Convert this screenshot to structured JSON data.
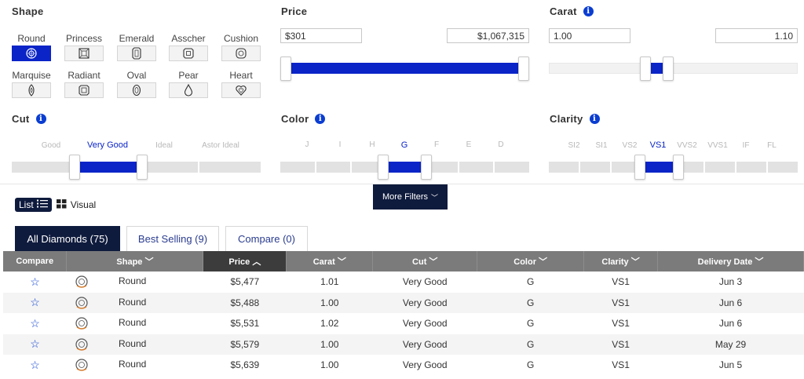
{
  "shape": {
    "title": "Shape",
    "items": [
      {
        "label": "Round",
        "icon": "round-shape-icon",
        "active": true
      },
      {
        "label": "Princess",
        "icon": "princess-shape-icon",
        "active": false
      },
      {
        "label": "Emerald",
        "icon": "emerald-shape-icon",
        "active": false
      },
      {
        "label": "Asscher",
        "icon": "asscher-shape-icon",
        "active": false
      },
      {
        "label": "Cushion",
        "icon": "cushion-shape-icon",
        "active": false
      },
      {
        "label": "Marquise",
        "icon": "marquise-shape-icon",
        "active": false
      },
      {
        "label": "Radiant",
        "icon": "radiant-shape-icon",
        "active": false
      },
      {
        "label": "Oval",
        "icon": "oval-shape-icon",
        "active": false
      },
      {
        "label": "Pear",
        "icon": "pear-shape-icon",
        "active": false
      },
      {
        "label": "Heart",
        "icon": "heart-shape-icon",
        "active": false
      }
    ]
  },
  "price": {
    "title": "Price",
    "min_value": "$301",
    "max_value": "$1,067,315"
  },
  "carat": {
    "title": "Carat",
    "min_value": "1.00",
    "max_value": "1.10"
  },
  "cut": {
    "title": "Cut",
    "grades": [
      "Good",
      "Very Good",
      "Ideal",
      "Astor Ideal"
    ],
    "selected": "Very Good"
  },
  "color": {
    "title": "Color",
    "grades": [
      "J",
      "I",
      "H",
      "G",
      "F",
      "E",
      "D"
    ],
    "selected": "G"
  },
  "clarity": {
    "title": "Clarity",
    "grades": [
      "SI2",
      "SI1",
      "VS2",
      "VS1",
      "VVS2",
      "VVS1",
      "IF",
      "FL"
    ],
    "selected": "VS1"
  },
  "more_filters": "More Filters",
  "view": {
    "list": "List",
    "visual": "Visual"
  },
  "tabs": [
    {
      "label": "All Diamonds (75)",
      "active": true
    },
    {
      "label": "Best Selling (9)",
      "active": false
    },
    {
      "label": "Compare (0)",
      "active": false
    }
  ],
  "table": {
    "headers": [
      "Compare",
      "Shape",
      "Price",
      "Carat",
      "Cut",
      "Color",
      "Clarity",
      "Delivery Date"
    ],
    "sorted_column": "Price",
    "rows": [
      {
        "shape": "Round",
        "price": "$5,477",
        "carat": "1.01",
        "cut": "Very Good",
        "color": "G",
        "clarity": "VS1",
        "delivery": "Jun 3"
      },
      {
        "shape": "Round",
        "price": "$5,488",
        "carat": "1.00",
        "cut": "Very Good",
        "color": "G",
        "clarity": "VS1",
        "delivery": "Jun 6"
      },
      {
        "shape": "Round",
        "price": "$5,531",
        "carat": "1.02",
        "cut": "Very Good",
        "color": "G",
        "clarity": "VS1",
        "delivery": "Jun 6"
      },
      {
        "shape": "Round",
        "price": "$5,579",
        "carat": "1.00",
        "cut": "Very Good",
        "color": "G",
        "clarity": "VS1",
        "delivery": "May 29"
      },
      {
        "shape": "Round",
        "price": "$5,639",
        "carat": "1.00",
        "cut": "Very Good",
        "color": "G",
        "clarity": "VS1",
        "delivery": "Jun 5"
      }
    ]
  },
  "colors": {
    "accent": "#0a24c8",
    "navy": "#0f1b3d",
    "header_gray": "#7b7b7b"
  }
}
